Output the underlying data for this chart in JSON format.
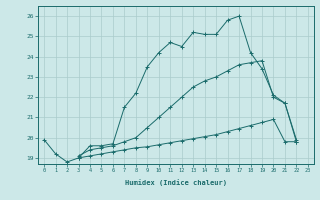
{
  "xlabel": "Humidex (Indice chaleur)",
  "bg_color": "#cce8e8",
  "line_color": "#1a6b6b",
  "grid_color": "#aacccc",
  "xlim": [
    -0.5,
    23.5
  ],
  "ylim": [
    18.7,
    26.5
  ],
  "yticks": [
    19,
    20,
    21,
    22,
    23,
    24,
    25,
    26
  ],
  "xticks": [
    0,
    1,
    2,
    3,
    4,
    5,
    6,
    7,
    8,
    9,
    10,
    11,
    12,
    13,
    14,
    15,
    16,
    17,
    18,
    19,
    20,
    21,
    22,
    23
  ],
  "line1_x": [
    0,
    1,
    2,
    3,
    4,
    5,
    6,
    7,
    8,
    9,
    10,
    11,
    12,
    13,
    14,
    15,
    16,
    17,
    18,
    19,
    20,
    21,
    22
  ],
  "line1_y": [
    19.9,
    19.2,
    18.8,
    19.0,
    19.6,
    19.6,
    19.7,
    21.5,
    22.2,
    23.5,
    24.2,
    24.7,
    24.5,
    25.2,
    25.1,
    25.1,
    25.8,
    26.0,
    24.2,
    23.4,
    22.1,
    21.7,
    19.8
  ],
  "line2_x": [
    3,
    4,
    5,
    6,
    7,
    8,
    9,
    10,
    11,
    12,
    13,
    14,
    15,
    16,
    17,
    18,
    19,
    20,
    21,
    22
  ],
  "line2_y": [
    19.1,
    19.4,
    19.5,
    19.6,
    19.8,
    20.0,
    20.5,
    21.0,
    21.5,
    22.0,
    22.5,
    22.8,
    23.0,
    23.3,
    23.6,
    23.7,
    23.8,
    22.0,
    21.7,
    19.9
  ],
  "line3_x": [
    3,
    4,
    5,
    6,
    7,
    8,
    9,
    10,
    11,
    12,
    13,
    14,
    15,
    16,
    17,
    18,
    19,
    20,
    21,
    22
  ],
  "line3_y": [
    19.0,
    19.1,
    19.2,
    19.3,
    19.4,
    19.5,
    19.55,
    19.65,
    19.75,
    19.85,
    19.95,
    20.05,
    20.15,
    20.3,
    20.45,
    20.6,
    20.75,
    20.9,
    19.8,
    19.8
  ]
}
